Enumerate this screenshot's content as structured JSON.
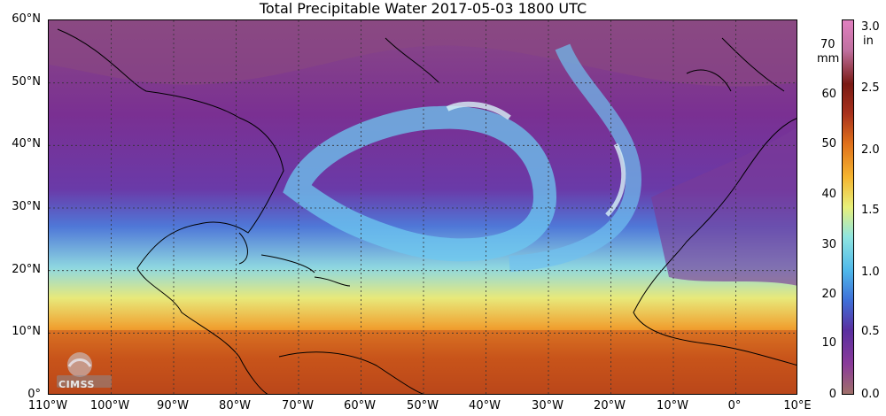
{
  "title": "Total Precipitable Water  2017-05-03 1800 UTC",
  "lat_labels": [
    "60°N",
    "50°N",
    "40°N",
    "30°N",
    "20°N",
    "10°N",
    "0°"
  ],
  "lon_labels": [
    "110°W",
    "100°W",
    "90°W",
    "80°W",
    "70°W",
    "60°W",
    "50°W",
    "40°W",
    "30°W",
    "20°W",
    "10°W",
    "0°",
    "10°E"
  ],
  "colorbar": {
    "mm_unit": "mm",
    "in_unit": "in",
    "mm_ticks": [
      "0",
      "10",
      "20",
      "30",
      "40",
      "50",
      "60",
      "70"
    ],
    "in_ticks": [
      "0.0",
      "0.5",
      "1.0",
      "1.5",
      "2.0",
      "2.5",
      "3.0"
    ],
    "colors": [
      "#a0706a",
      "#8a3a9a",
      "#5a2fa0",
      "#3f6fd8",
      "#4fb8ea",
      "#8fe5e0",
      "#e8f07a",
      "#f5b530",
      "#e0701a",
      "#a8311c",
      "#7a1a14",
      "#c070a0",
      "#e080c0"
    ]
  },
  "logo": {
    "text": "CIMSS"
  }
}
